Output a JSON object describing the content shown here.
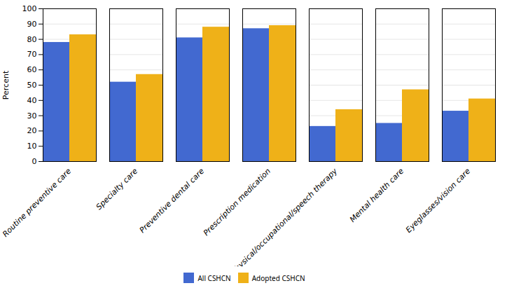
{
  "chart_data": {
    "type": "bar",
    "categories": [
      "Routine preventive care",
      "Specialty care",
      "Preventive dental care",
      "Prescription medication",
      "Physical/occupational/speech therapy",
      "Mental health care",
      "Eyeglasses/vision care"
    ],
    "series": [
      {
        "name": "All CSHCN",
        "values": [
          78,
          52,
          81,
          87,
          23,
          25,
          33
        ]
      },
      {
        "name": "Adopted CSHCN",
        "values": [
          83,
          57,
          88,
          89,
          34,
          47,
          41
        ]
      }
    ],
    "ylabel": "Percent",
    "ylim": [
      0,
      100
    ],
    "yticks": [
      0,
      10,
      20,
      30,
      40,
      50,
      60,
      70,
      80,
      90,
      100
    ],
    "grid": true,
    "legend": "bottom"
  }
}
